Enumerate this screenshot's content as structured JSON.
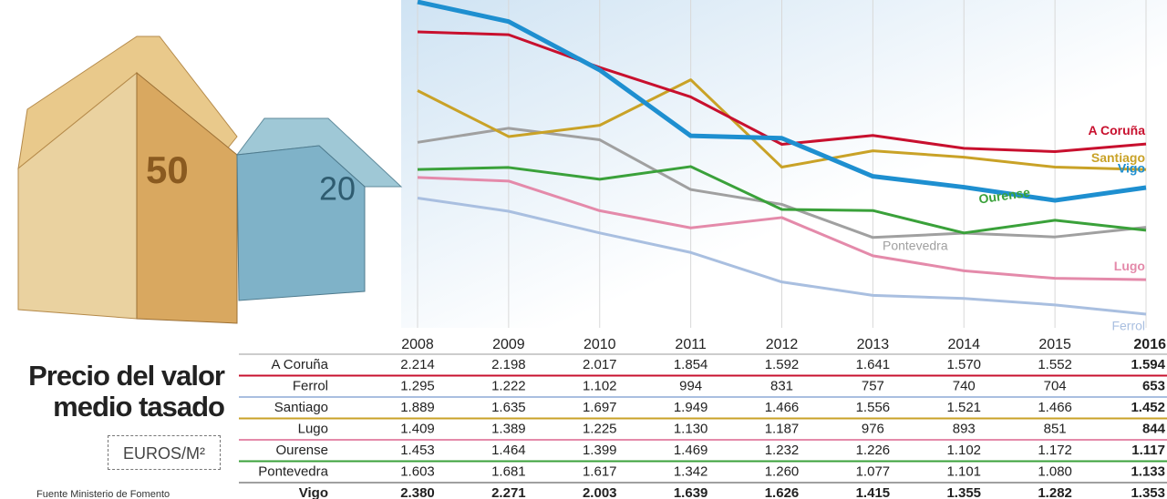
{
  "chart_data": {
    "type": "line",
    "title": "Precio del valor medio tasado",
    "unit": "EUROS/M²",
    "source": "Fuente Ministerio de Fomento",
    "x": [
      "2008",
      "2009",
      "2010",
      "2011",
      "2012",
      "2013",
      "2014",
      "2015",
      "2016"
    ],
    "series": [
      {
        "name": "A Coruña",
        "color": "#c8102e",
        "values": [
          2214,
          2198,
          2017,
          1854,
          1592,
          1641,
          1570,
          1552,
          1594
        ],
        "value_labels": [
          "2.214",
          "2.198",
          "2.017",
          "1.854",
          "1.592",
          "1.641",
          "1.570",
          "1.552",
          "1.594"
        ]
      },
      {
        "name": "Ferrol",
        "color": "#a9bfe0",
        "values": [
          1295,
          1222,
          1102,
          994,
          831,
          757,
          740,
          704,
          653
        ],
        "value_labels": [
          "1.295",
          "1.222",
          "1.102",
          "994",
          "831",
          "757",
          "740",
          "704",
          "653"
        ]
      },
      {
        "name": "Santiago",
        "color": "#c9a227",
        "values": [
          1889,
          1635,
          1697,
          1949,
          1466,
          1556,
          1521,
          1466,
          1452
        ],
        "value_labels": [
          "1.889",
          "1.635",
          "1.697",
          "1.949",
          "1.466",
          "1.556",
          "1.521",
          "1.466",
          "1.452"
        ]
      },
      {
        "name": "Lugo",
        "color": "#e48aaa",
        "values": [
          1409,
          1389,
          1225,
          1130,
          1187,
          976,
          893,
          851,
          844
        ],
        "value_labels": [
          "1.409",
          "1.389",
          "1.225",
          "1.130",
          "1.187",
          "976",
          "893",
          "851",
          "844"
        ]
      },
      {
        "name": "Ourense",
        "color": "#3aa13a",
        "values": [
          1453,
          1464,
          1399,
          1469,
          1232,
          1226,
          1102,
          1172,
          1117
        ],
        "value_labels": [
          "1.453",
          "1.464",
          "1.399",
          "1.469",
          "1.232",
          "1.226",
          "1.102",
          "1.172",
          "1.117"
        ]
      },
      {
        "name": "Pontevedra",
        "color": "#a0a0a0",
        "values": [
          1603,
          1681,
          1617,
          1342,
          1260,
          1077,
          1101,
          1080,
          1133
        ],
        "value_labels": [
          "1.603",
          "1.681",
          "1.617",
          "1.342",
          "1.260",
          "1.077",
          "1.101",
          "1.080",
          "1.133"
        ]
      },
      {
        "name": "Vigo",
        "color": "#1e8fd0",
        "values": [
          2380,
          2271,
          2003,
          1639,
          1626,
          1415,
          1355,
          1282,
          1353
        ],
        "value_labels": [
          "2.380",
          "2.271",
          "2.003",
          "1.639",
          "1.626",
          "1.415",
          "1.355",
          "1.282",
          "1.353"
        ]
      }
    ]
  }
}
